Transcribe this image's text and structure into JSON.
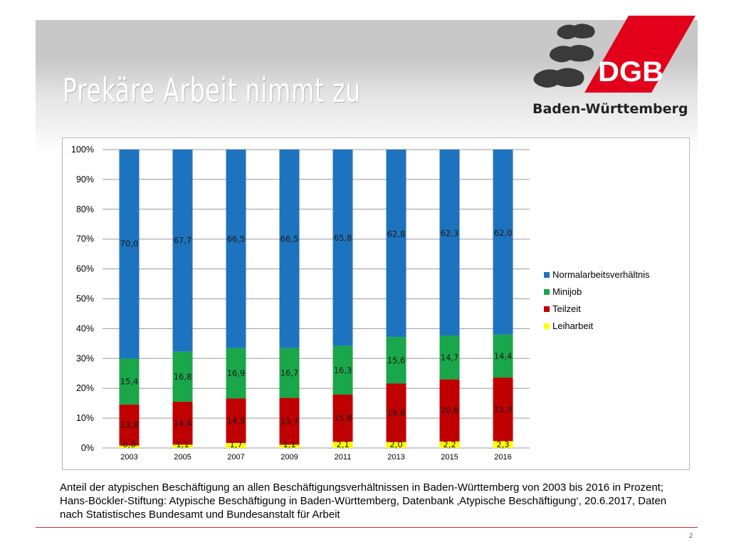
{
  "slide": {
    "title": "Prekäre Arbeit nimmt zu",
    "logo_text": "DGB",
    "region": "Baden-Württemberg",
    "caption": "Anteil der atypischen Beschäftigung an allen Beschäftigungsverhältnissen in Baden-Württemberg von 2003 bis 2016 in Prozent; Hans-Böckler-Stiftung: Atypische Beschäftigung in Baden-Württemberg, Datenbank ‚Atypische Beschäftigung‘, 20.6.2017, Daten nach Statistisches Bundesamt und Bundesanstalt für Arbeit",
    "page_number": "2"
  },
  "colors": {
    "accent_red": "#e2001a",
    "Normalarbeitsverhältnis": "#1e73be",
    "Minijob": "#1aa64a",
    "Teilzeit": "#c00000",
    "Leiharbeit": "#ffff00"
  },
  "chart_data": {
    "type": "bar",
    "stacked": true,
    "percent": true,
    "categories": [
      "2003",
      "2005",
      "2007",
      "2009",
      "2011",
      "2013",
      "2015",
      "2016"
    ],
    "series": [
      {
        "name": "Leiharbeit",
        "values": [
          0.8,
          1.1,
          1.7,
          1.1,
          2.1,
          2.0,
          2.2,
          2.3
        ],
        "labels": [
          "0,8",
          "1,1",
          "1,7",
          "1,1",
          "2,1",
          "2,0",
          "2,2",
          "2,3"
        ]
      },
      {
        "name": "Teilzeit",
        "values": [
          13.8,
          14.4,
          14.9,
          15.7,
          15.8,
          19.6,
          20.8,
          21.3
        ],
        "labels": [
          "13,8",
          "14,4",
          "14,9",
          "15,7",
          "15,8",
          "19,6",
          "20,8",
          "21,3"
        ]
      },
      {
        "name": "Minijob",
        "values": [
          15.4,
          16.8,
          16.9,
          16.7,
          16.3,
          15.6,
          14.7,
          14.4
        ],
        "labels": [
          "15,4",
          "16,8",
          "16,9",
          "16,7",
          "16,3",
          "15,6",
          "14,7",
          "14,4"
        ]
      },
      {
        "name": "Normalarbeitsverhältnis",
        "values": [
          70.0,
          67.7,
          66.5,
          66.5,
          65.8,
          62.8,
          62.3,
          62.0
        ],
        "labels": [
          "70,0",
          "67,7",
          "66,5",
          "66,5",
          "65,8",
          "62,8",
          "62,3",
          "62,0"
        ]
      }
    ],
    "legend_order": [
      "Normalarbeitsverhältnis",
      "Minijob",
      "Teilzeit",
      "Leiharbeit"
    ],
    "legend_position": "right",
    "y_ticks": [
      "0%",
      "10%",
      "20%",
      "30%",
      "40%",
      "50%",
      "60%",
      "70%",
      "80%",
      "90%",
      "100%"
    ],
    "ylim": [
      0,
      100
    ],
    "grid": true
  }
}
